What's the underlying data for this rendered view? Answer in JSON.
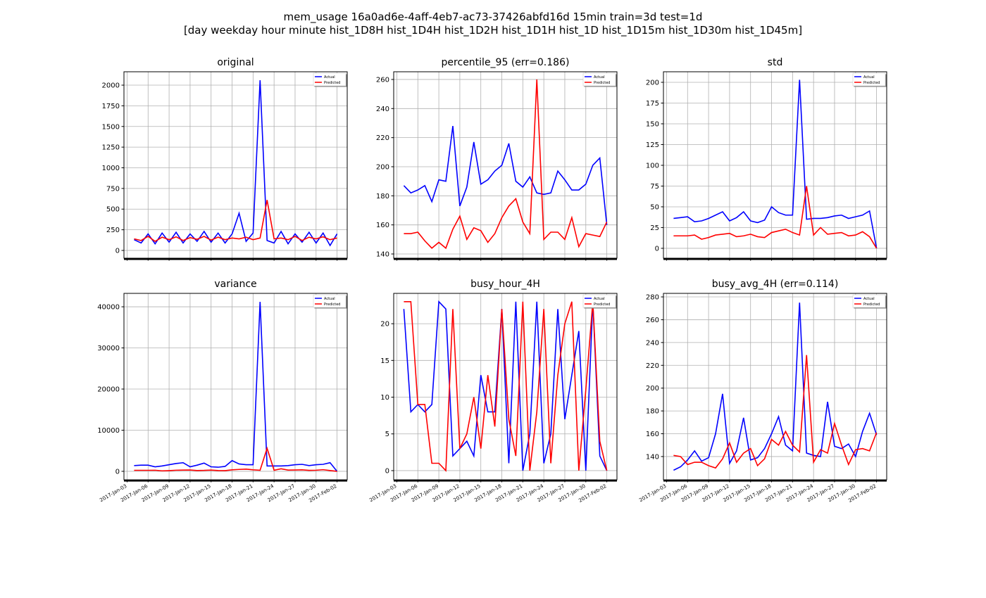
{
  "suptitle": [
    "mem_usage 16a0ad6e-4aff-4eb7-ac73-37426abfd16d 15min train=3d test=1d",
    "[day weekday hour minute hist_1D8H hist_1D4H hist_1D2H hist_1D1H hist_1D hist_1D15m hist_1D30m hist_1D45m]"
  ],
  "chart_data": [
    {
      "type": "line",
      "title": "original",
      "grid": true,
      "legend": "upper right",
      "x": [
        "2017-01-04",
        "2017-01-05",
        "2017-01-06",
        "2017-01-07",
        "2017-01-08",
        "2017-01-09",
        "2017-01-10",
        "2017-01-11",
        "2017-01-12",
        "2017-01-13",
        "2017-01-14",
        "2017-01-15",
        "2017-01-16",
        "2017-01-17",
        "2017-01-18",
        "2017-01-19",
        "2017-01-20",
        "2017-01-21",
        "2017-01-22",
        "2017-01-23",
        "2017-01-24",
        "2017-01-25",
        "2017-01-26",
        "2017-01-27",
        "2017-01-28",
        "2017-01-29",
        "2017-01-30",
        "2017-01-31",
        "2017-02-01",
        "2017-02-02"
      ],
      "series": [
        {
          "name": "Actual",
          "color": "#0000ff",
          "values": [
            130,
            90,
            200,
            80,
            210,
            100,
            220,
            90,
            200,
            110,
            230,
            100,
            210,
            90,
            200,
            450,
            110,
            210,
            2060,
            120,
            90,
            230,
            80,
            200,
            100,
            220,
            90,
            210,
            60,
            200
          ]
        },
        {
          "name": "Predicted",
          "color": "#ff0000",
          "values": [
            140,
            120,
            170,
            110,
            160,
            130,
            165,
            120,
            155,
            135,
            170,
            125,
            160,
            130,
            150,
            140,
            160,
            130,
            150,
            610,
            140,
            150,
            130,
            170,
            120,
            160,
            140,
            165,
            130,
            150
          ]
        }
      ],
      "xlim": [
        "2017-01-02T13:12:00Z",
        "2017-02-03T10:48:00Z"
      ],
      "xticks": [
        "2017-01-03",
        "2017-01-06",
        "2017-01-09",
        "2017-01-12",
        "2017-01-15",
        "2017-01-18",
        "2017-01-21",
        "2017-01-24",
        "2017-01-27",
        "2017-01-30",
        "2017-02-02"
      ],
      "ylim": [
        -94,
        2162
      ],
      "yticks": [
        0,
        250,
        500,
        750,
        1000,
        1250,
        1500,
        1750,
        2000
      ]
    },
    {
      "type": "line",
      "title": "percentile_95 (err=0.186)",
      "grid": true,
      "legend": "upper right",
      "x": [
        "2017-01-04",
        "2017-01-05",
        "2017-01-06",
        "2017-01-07",
        "2017-01-08",
        "2017-01-09",
        "2017-01-10",
        "2017-01-11",
        "2017-01-12",
        "2017-01-13",
        "2017-01-14",
        "2017-01-15",
        "2017-01-16",
        "2017-01-17",
        "2017-01-18",
        "2017-01-19",
        "2017-01-20",
        "2017-01-21",
        "2017-01-22",
        "2017-01-23",
        "2017-01-24",
        "2017-01-25",
        "2017-01-26",
        "2017-01-27",
        "2017-01-28",
        "2017-01-29",
        "2017-01-30",
        "2017-01-31",
        "2017-02-01",
        "2017-02-02"
      ],
      "series": [
        {
          "name": "Actual",
          "color": "#0000ff",
          "values": [
            187,
            182,
            184,
            187,
            176,
            191,
            190,
            228,
            173,
            186,
            217,
            188,
            191,
            197,
            201,
            216,
            190,
            186,
            193,
            182,
            181,
            182,
            197,
            191,
            184,
            184,
            188,
            201,
            206,
            160
          ]
        },
        {
          "name": "Predicted",
          "color": "#ff0000",
          "values": [
            154,
            154,
            155,
            149,
            144,
            148,
            144,
            157,
            166,
            150,
            158,
            156,
            148,
            154,
            165,
            173,
            178,
            162,
            154,
            260,
            150,
            155,
            155,
            150,
            165,
            145,
            154,
            153,
            152,
            162
          ]
        }
      ],
      "xlim": [
        "2017-01-02T13:12:00Z",
        "2017-02-03T10:48:00Z"
      ],
      "xticks": [
        "2017-01-03",
        "2017-01-06",
        "2017-01-09",
        "2017-01-12",
        "2017-01-15",
        "2017-01-18",
        "2017-01-21",
        "2017-01-24",
        "2017-01-27",
        "2017-01-30",
        "2017-02-02"
      ],
      "ylim": [
        137.1,
        265.3
      ],
      "yticks": [
        140,
        160,
        180,
        200,
        220,
        240,
        260
      ]
    },
    {
      "type": "line",
      "title": "std",
      "grid": true,
      "legend": "upper right",
      "x": [
        "2017-01-04",
        "2017-01-05",
        "2017-01-06",
        "2017-01-07",
        "2017-01-08",
        "2017-01-09",
        "2017-01-10",
        "2017-01-11",
        "2017-01-12",
        "2017-01-13",
        "2017-01-14",
        "2017-01-15",
        "2017-01-16",
        "2017-01-17",
        "2017-01-18",
        "2017-01-19",
        "2017-01-20",
        "2017-01-21",
        "2017-01-22",
        "2017-01-23",
        "2017-01-24",
        "2017-01-25",
        "2017-01-26",
        "2017-01-27",
        "2017-01-28",
        "2017-01-29",
        "2017-01-30",
        "2017-01-31",
        "2017-02-01",
        "2017-02-02"
      ],
      "series": [
        {
          "name": "Actual",
          "color": "#0000ff",
          "values": [
            36,
            37,
            38,
            32,
            33,
            36,
            40,
            44,
            33,
            37,
            44,
            33,
            31,
            34,
            50,
            43,
            40,
            40,
            203,
            35,
            36,
            36,
            37,
            39,
            40,
            36,
            38,
            40,
            45,
            0
          ]
        },
        {
          "name": "Predicted",
          "color": "#ff0000",
          "values": [
            15,
            15,
            15,
            16,
            11,
            13,
            16,
            17,
            18,
            14,
            15,
            17,
            14,
            13,
            19,
            21,
            23,
            19,
            16,
            75,
            16,
            25,
            17,
            18,
            19,
            15,
            16,
            20,
            14,
            0
          ]
        }
      ],
      "xlim": [
        "2017-01-02T13:12:00Z",
        "2017-02-03T10:48:00Z"
      ],
      "xticks": [
        "2017-01-03",
        "2017-01-06",
        "2017-01-09",
        "2017-01-12",
        "2017-01-15",
        "2017-01-18",
        "2017-01-21",
        "2017-01-24",
        "2017-01-27",
        "2017-01-30",
        "2017-02-02"
      ],
      "ylim": [
        -11.9,
        212.7
      ],
      "yticks": [
        0,
        25,
        50,
        75,
        100,
        125,
        150,
        175,
        200
      ]
    },
    {
      "type": "line",
      "title": "variance",
      "grid": true,
      "legend": "upper right",
      "x": [
        "2017-01-04",
        "2017-01-05",
        "2017-01-06",
        "2017-01-07",
        "2017-01-08",
        "2017-01-09",
        "2017-01-10",
        "2017-01-11",
        "2017-01-12",
        "2017-01-13",
        "2017-01-14",
        "2017-01-15",
        "2017-01-16",
        "2017-01-17",
        "2017-01-18",
        "2017-01-19",
        "2017-01-20",
        "2017-01-21",
        "2017-01-22",
        "2017-01-23",
        "2017-01-24",
        "2017-01-25",
        "2017-01-26",
        "2017-01-27",
        "2017-01-28",
        "2017-01-29",
        "2017-01-30",
        "2017-01-31",
        "2017-02-01",
        "2017-02-02"
      ],
      "series": [
        {
          "name": "Actual",
          "color": "#0000ff",
          "values": [
            1400,
            1500,
            1500,
            1100,
            1300,
            1600,
            1900,
            2100,
            1100,
            1500,
            2000,
            1100,
            1000,
            1200,
            2600,
            1800,
            1600,
            1600,
            41200,
            1300,
            1300,
            1300,
            1400,
            1600,
            1700,
            1400,
            1600,
            1700,
            2100,
            0
          ]
        },
        {
          "name": "Predicted",
          "color": "#ff0000",
          "values": [
            250,
            250,
            250,
            270,
            120,
            180,
            270,
            300,
            330,
            200,
            230,
            300,
            200,
            170,
            370,
            460,
            540,
            370,
            260,
            5600,
            260,
            620,
            300,
            330,
            360,
            230,
            270,
            400,
            200,
            0
          ]
        }
      ],
      "xlim": [
        "2017-01-02T13:12:00Z",
        "2017-02-03T10:48:00Z"
      ],
      "xticks": [
        {
          "value": "2017-01-03",
          "label": "2017-Jan-03"
        },
        {
          "value": "2017-01-06",
          "label": "2017-Jan-06"
        },
        {
          "value": "2017-01-09",
          "label": "2017-Jan-09"
        },
        {
          "value": "2017-01-12",
          "label": "2017-Jan-12"
        },
        {
          "value": "2017-01-15",
          "label": "2017-Jan-15"
        },
        {
          "value": "2017-01-18",
          "label": "2017-Jan-18"
        },
        {
          "value": "2017-01-21",
          "label": "2017-Jan-21"
        },
        {
          "value": "2017-01-24",
          "label": "2017-Jan-24"
        },
        {
          "value": "2017-01-27",
          "label": "2017-Jan-27"
        },
        {
          "value": "2017-01-30",
          "label": "2017-Jan-30"
        },
        {
          "value": "2017-02-02",
          "label": "2017-Feb-02"
        }
      ],
      "ylim": [
        -2060,
        43260
      ],
      "yticks": [
        0,
        10000,
        20000,
        30000,
        40000
      ]
    },
    {
      "type": "line",
      "title": "busy_hour_4H",
      "grid": true,
      "legend": "upper right",
      "x": [
        "2017-01-04",
        "2017-01-05",
        "2017-01-06",
        "2017-01-07",
        "2017-01-08",
        "2017-01-09",
        "2017-01-10",
        "2017-01-11",
        "2017-01-12",
        "2017-01-13",
        "2017-01-14",
        "2017-01-15",
        "2017-01-16",
        "2017-01-17",
        "2017-01-18",
        "2017-01-19",
        "2017-01-20",
        "2017-01-21",
        "2017-01-22",
        "2017-01-23",
        "2017-01-24",
        "2017-01-25",
        "2017-01-26",
        "2017-01-27",
        "2017-01-28",
        "2017-01-29",
        "2017-01-30",
        "2017-01-31",
        "2017-02-01",
        "2017-02-02"
      ],
      "series": [
        {
          "name": "Actual",
          "color": "#0000ff",
          "values": [
            22,
            8,
            9,
            8,
            9,
            23,
            22,
            2,
            3,
            4,
            2,
            13,
            8,
            8,
            22,
            1,
            23,
            0,
            5,
            23,
            1,
            5,
            22,
            7,
            13,
            19,
            0,
            23,
            2,
            0
          ]
        },
        {
          "name": "Predicted",
          "color": "#ff0000",
          "values": [
            23,
            23,
            9,
            9,
            1,
            1,
            0,
            22,
            3,
            5,
            10,
            3,
            13,
            6,
            22,
            7,
            2,
            23,
            0,
            8,
            22,
            1,
            13,
            20,
            23,
            0,
            11,
            23,
            4,
            0
          ]
        }
      ],
      "xlim": [
        "2017-01-02T13:12:00Z",
        "2017-02-03T10:48:00Z"
      ],
      "xticks": [
        {
          "value": "2017-01-03",
          "label": "2017-Jan-03"
        },
        {
          "value": "2017-01-06",
          "label": "2017-Jan-06"
        },
        {
          "value": "2017-01-09",
          "label": "2017-Jan-09"
        },
        {
          "value": "2017-01-12",
          "label": "2017-Jan-12"
        },
        {
          "value": "2017-01-15",
          "label": "2017-Jan-15"
        },
        {
          "value": "2017-01-18",
          "label": "2017-Jan-18"
        },
        {
          "value": "2017-01-21",
          "label": "2017-Jan-21"
        },
        {
          "value": "2017-01-24",
          "label": "2017-Jan-24"
        },
        {
          "value": "2017-01-27",
          "label": "2017-Jan-27"
        },
        {
          "value": "2017-01-30",
          "label": "2017-Jan-30"
        },
        {
          "value": "2017-02-02",
          "label": "2017-Feb-02"
        }
      ],
      "ylim": [
        -1.25,
        24.13
      ],
      "yticks": [
        0,
        5,
        10,
        15,
        20
      ]
    },
    {
      "type": "line",
      "title": "busy_avg_4H (err=0.114)",
      "grid": true,
      "legend": "upper right",
      "x": [
        "2017-01-04",
        "2017-01-05",
        "2017-01-06",
        "2017-01-07",
        "2017-01-08",
        "2017-01-09",
        "2017-01-10",
        "2017-01-11",
        "2017-01-12",
        "2017-01-13",
        "2017-01-14",
        "2017-01-15",
        "2017-01-16",
        "2017-01-17",
        "2017-01-18",
        "2017-01-19",
        "2017-01-20",
        "2017-01-21",
        "2017-01-22",
        "2017-01-23",
        "2017-01-24",
        "2017-01-25",
        "2017-01-26",
        "2017-01-27",
        "2017-01-28",
        "2017-01-29",
        "2017-01-30",
        "2017-01-31",
        "2017-02-01",
        "2017-02-02"
      ],
      "series": [
        {
          "name": "Actual",
          "color": "#0000ff",
          "values": [
            128,
            131,
            137,
            145,
            136,
            139,
            160,
            195,
            134,
            145,
            174,
            137,
            139,
            147,
            160,
            175,
            150,
            145,
            275,
            143,
            141,
            140,
            188,
            149,
            147,
            151,
            140,
            162,
            178,
            159
          ]
        },
        {
          "name": "Predicted",
          "color": "#ff0000",
          "values": [
            141,
            140,
            133,
            135,
            135,
            132,
            130,
            138,
            152,
            135,
            143,
            147,
            132,
            138,
            155,
            150,
            162,
            150,
            144,
            229,
            135,
            146,
            143,
            169,
            150,
            133,
            146,
            147,
            145,
            161
          ]
        }
      ],
      "xlim": [
        "2017-01-02T13:12:00Z",
        "2017-02-03T10:48:00Z"
      ],
      "xticks": [
        {
          "value": "2017-01-03",
          "label": "2017-Jan-03"
        },
        {
          "value": "2017-01-06",
          "label": "2017-Jan-06"
        },
        {
          "value": "2017-01-09",
          "label": "2017-Jan-09"
        },
        {
          "value": "2017-01-12",
          "label": "2017-Jan-12"
        },
        {
          "value": "2017-01-15",
          "label": "2017-Jan-15"
        },
        {
          "value": "2017-01-18",
          "label": "2017-Jan-18"
        },
        {
          "value": "2017-01-21",
          "label": "2017-Jan-21"
        },
        {
          "value": "2017-01-24",
          "label": "2017-Jan-24"
        },
        {
          "value": "2017-01-27",
          "label": "2017-Jan-27"
        },
        {
          "value": "2017-01-30",
          "label": "2017-Jan-30"
        },
        {
          "value": "2017-02-02",
          "label": "2017-Feb-02"
        }
      ],
      "ylim": [
        119.6,
        283.1
      ],
      "yticks": [
        140,
        160,
        180,
        200,
        220,
        240,
        260,
        280
      ]
    }
  ]
}
